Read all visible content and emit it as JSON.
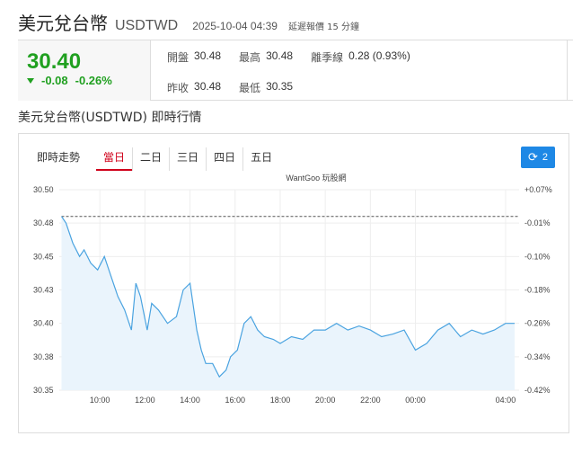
{
  "header": {
    "title": "美元兌台幣",
    "code": "USDTWD",
    "timestamp": "2025-10-04 04:39",
    "delay_note": "延遲報價 15 分鐘"
  },
  "quote": {
    "price": "30.40",
    "change": "-0.08",
    "change_pct": "-0.26%",
    "open_label": "開盤",
    "open": "30.48",
    "high_label": "最高",
    "high": "30.48",
    "range_label": "離季線",
    "range": "0.28 (0.93%)",
    "prev_close_label": "昨收",
    "prev_close": "30.48",
    "low_label": "最低",
    "low": "30.35"
  },
  "section_title": "美元兌台幣(USDTWD) 即時行情",
  "tabs": {
    "label": "即時走勢",
    "items": [
      "當日",
      "二日",
      "三日",
      "四日",
      "五日"
    ],
    "active": 0
  },
  "refresh": {
    "count": "2"
  },
  "colors": {
    "line": "#4aa3e0",
    "fill": "#eaf4fc",
    "down": "#20a020",
    "up": "#d0021b",
    "ref_line": "#555555"
  },
  "chart_data": {
    "type": "line",
    "watermark": "WantGoo 玩股網",
    "x_ticks": [
      "10:00",
      "12:00",
      "14:00",
      "16:00",
      "18:00",
      "20:00",
      "22:00",
      "00:00",
      "04:00"
    ],
    "x_tick_hours": [
      10,
      12,
      14,
      16,
      18,
      20,
      22,
      24,
      28
    ],
    "x_range_hours": [
      8.2,
      28.6
    ],
    "ylim": [
      30.35,
      30.5
    ],
    "y_ticks_left": [
      "30.50",
      "30.48",
      "30.45",
      "30.43",
      "30.40",
      "30.38",
      "30.35"
    ],
    "y_ticks_right": [
      "+0.07%",
      "-0.01%",
      "-0.10%",
      "-0.18%",
      "-0.26%",
      "-0.34%",
      "-0.42%"
    ],
    "reference": 30.48,
    "x_hours": [
      8.3,
      8.5,
      8.8,
      9.1,
      9.3,
      9.6,
      9.9,
      10.2,
      10.5,
      10.8,
      11.1,
      11.4,
      11.6,
      11.8,
      12.1,
      12.3,
      12.6,
      13.0,
      13.4,
      13.7,
      14.0,
      14.3,
      14.5,
      14.7,
      15.0,
      15.3,
      15.6,
      15.8,
      16.1,
      16.4,
      16.7,
      17.0,
      17.3,
      17.7,
      18.0,
      18.5,
      19.0,
      19.5,
      20.0,
      20.5,
      21.0,
      21.5,
      22.0,
      22.5,
      23.0,
      23.5,
      24.0,
      24.5,
      25.0,
      25.5,
      26.0,
      26.5,
      27.0,
      27.5,
      28.0,
      28.4
    ],
    "values": [
      30.48,
      30.475,
      30.46,
      30.45,
      30.455,
      30.445,
      30.44,
      30.45,
      30.435,
      30.42,
      30.41,
      30.395,
      30.43,
      30.42,
      30.395,
      30.415,
      30.41,
      30.4,
      30.405,
      30.425,
      30.43,
      30.395,
      30.38,
      30.37,
      30.37,
      30.36,
      30.365,
      30.375,
      30.38,
      30.4,
      30.405,
      30.395,
      30.39,
      30.388,
      30.385,
      30.39,
      30.388,
      30.395,
      30.395,
      30.4,
      30.395,
      30.398,
      30.395,
      30.39,
      30.392,
      30.395,
      30.38,
      30.385,
      30.395,
      30.4,
      30.39,
      30.395,
      30.392,
      30.395,
      30.4,
      30.4
    ]
  }
}
